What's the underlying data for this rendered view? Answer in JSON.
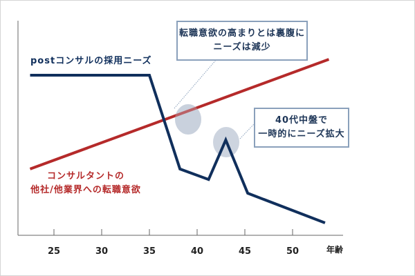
{
  "chart_data": {
    "type": "line",
    "title": "",
    "xlabel": "年齢",
    "ylabel": "",
    "xticks": [
      25,
      30,
      35,
      40,
      45,
      50
    ],
    "xlim": [
      21.2,
      55.5
    ],
    "ylim": [
      0,
      100
    ],
    "series": [
      {
        "name": "postコンサルの採用ニーズ",
        "color": "#102f5c",
        "x": [
          22.5,
          35,
          38.2,
          41.2,
          43,
          45.3,
          53.4
        ],
        "y": [
          74.6,
          74.6,
          30.9,
          26,
          44.4,
          19.6,
          5.8
        ]
      },
      {
        "name": "コンサルタントの他社/他業界への転職意欲",
        "color": "#b52a2a",
        "x": [
          22.5,
          53.8
        ],
        "y": [
          30.9,
          82
        ]
      }
    ],
    "annotations": [
      {
        "lines": [
          "転職意欲の高まりとは裏腹に",
          "ニーズは減少"
        ],
        "x": 36.6,
        "y": 53.7
      },
      {
        "lines": [
          "40代中盤で",
          "一時的にニーズ拡大"
        ],
        "x": 43,
        "y": 43.4
      }
    ]
  },
  "labels": {
    "navy": "postコンサルの採用ニーズ",
    "red_line1": "コンサルタントの",
    "red_line2": "他社/他業界への転職意欲"
  }
}
